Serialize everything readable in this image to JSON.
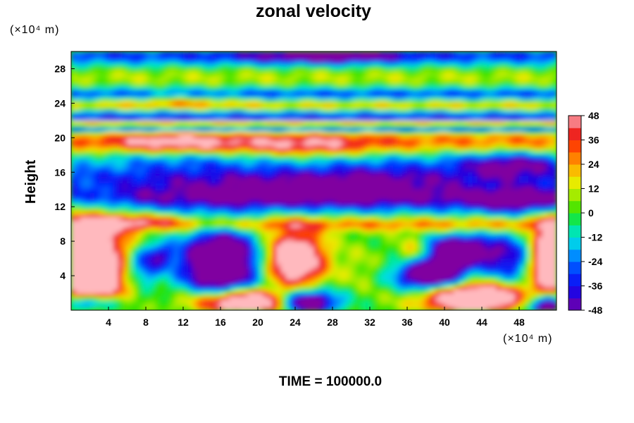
{
  "title": "zonal velocity",
  "footer": "TIME = 100000.0",
  "chart_data": {
    "type": "heatmap",
    "title": "zonal velocity",
    "xlabel": "",
    "ylabel": "Height",
    "x_unit": "(×10⁴ m)",
    "y_unit": "(×10⁴ m)",
    "xlim": [
      0,
      52
    ],
    "ylim": [
      0,
      30
    ],
    "x_ticks": [
      4,
      8,
      12,
      16,
      20,
      24,
      28,
      32,
      36,
      40,
      44,
      48
    ],
    "y_ticks": [
      4,
      8,
      12,
      16,
      20,
      24,
      28
    ],
    "colorbar": {
      "min": -48,
      "max": 48,
      "step": 6,
      "ticks": [
        48,
        36,
        24,
        12,
        0,
        -12,
        -24,
        -36,
        -48
      ]
    },
    "features": [
      {
        "x": 2,
        "y": 4.5,
        "value": 48
      },
      {
        "x": 1.5,
        "y": 0.8,
        "value": -48
      },
      {
        "x": 16,
        "y": 5.5,
        "value": -48
      },
      {
        "x": 19,
        "y": 1,
        "value": 48
      },
      {
        "x": 24,
        "y": 6,
        "value": 48
      },
      {
        "x": 25,
        "y": 1,
        "value": -48
      },
      {
        "x": 38.5,
        "y": 4.3,
        "value": -48
      },
      {
        "x": 41.5,
        "y": 7,
        "value": -44
      },
      {
        "x": 43,
        "y": 1.5,
        "value": 48
      },
      {
        "x": 51,
        "y": 0.5,
        "value": -48
      },
      {
        "x": 51.5,
        "y": 6,
        "value": 48
      },
      {
        "x": 11,
        "y": 19.5,
        "value": 48
      },
      {
        "x": 25,
        "y": 19,
        "value": 42
      },
      {
        "x": 24,
        "y": 14,
        "value": -36
      },
      {
        "x": 47,
        "y": 17,
        "value": -45
      },
      {
        "x": 48,
        "y": 12.5,
        "value": -40
      },
      {
        "x": 26,
        "y": 21.2,
        "value": -40
      },
      {
        "x": 26,
        "y": 22.5,
        "value": 30
      },
      {
        "x": 27,
        "y": 29.5,
        "value": -42
      },
      {
        "x": 12,
        "y": 24.5,
        "value": 25
      }
    ]
  }
}
